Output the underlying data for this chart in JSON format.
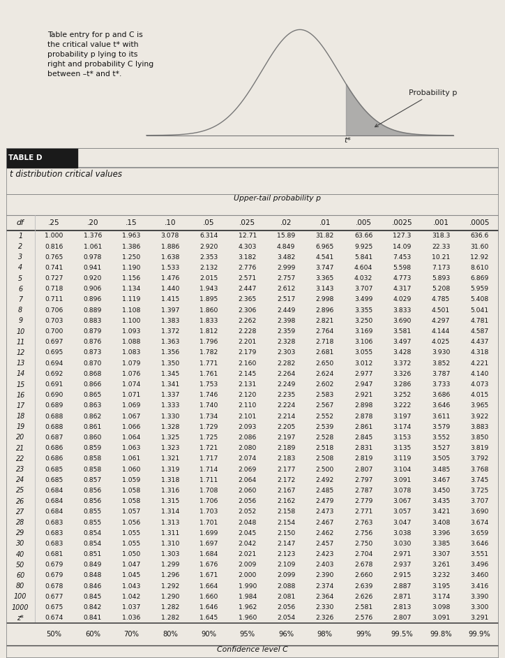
{
  "title": "TABLE D",
  "subtitle": "t distribution critical values",
  "upper_tail_label": "Upper-tail probability p",
  "col_headers": [
    ".25",
    ".20",
    ".15",
    ".10",
    ".05",
    ".025",
    ".02",
    ".01",
    ".005",
    ".0025",
    ".001",
    ".0005"
  ],
  "conf_headers": [
    "50%",
    "60%",
    "70%",
    "80%",
    "90%",
    "95%",
    "96%",
    "98%",
    "99%",
    "99.5%",
    "99.8%",
    "99.9%"
  ],
  "df_labels": [
    "1",
    "2",
    "3",
    "4",
    "5",
    "6",
    "7",
    "8",
    "9",
    "10",
    "11",
    "12",
    "13",
    "14",
    "15",
    "16",
    "17",
    "18",
    "19",
    "20",
    "21",
    "22",
    "23",
    "24",
    "25",
    "26",
    "27",
    "28",
    "29",
    "30",
    "40",
    "50",
    "60",
    "80",
    "100",
    "1000",
    "z*"
  ],
  "table_data": [
    [
      1.0,
      1.376,
      1.963,
      3.078,
      6.314,
      12.71,
      15.89,
      31.82,
      63.66,
      127.3,
      318.3,
      636.6
    ],
    [
      0.816,
      1.061,
      1.386,
      1.886,
      2.92,
      4.303,
      4.849,
      6.965,
      9.925,
      14.09,
      22.33,
      31.6
    ],
    [
      0.765,
      0.978,
      1.25,
      1.638,
      2.353,
      3.182,
      3.482,
      4.541,
      5.841,
      7.453,
      10.21,
      12.92
    ],
    [
      0.741,
      0.941,
      1.19,
      1.533,
      2.132,
      2.776,
      2.999,
      3.747,
      4.604,
      5.598,
      7.173,
      8.61
    ],
    [
      0.727,
      0.92,
      1.156,
      1.476,
      2.015,
      2.571,
      2.757,
      3.365,
      4.032,
      4.773,
      5.893,
      6.869
    ],
    [
      0.718,
      0.906,
      1.134,
      1.44,
      1.943,
      2.447,
      2.612,
      3.143,
      3.707,
      4.317,
      5.208,
      5.959
    ],
    [
      0.711,
      0.896,
      1.119,
      1.415,
      1.895,
      2.365,
      2.517,
      2.998,
      3.499,
      4.029,
      4.785,
      5.408
    ],
    [
      0.706,
      0.889,
      1.108,
      1.397,
      1.86,
      2.306,
      2.449,
      2.896,
      3.355,
      3.833,
      4.501,
      5.041
    ],
    [
      0.703,
      0.883,
      1.1,
      1.383,
      1.833,
      2.262,
      2.398,
      2.821,
      3.25,
      3.69,
      4.297,
      4.781
    ],
    [
      0.7,
      0.879,
      1.093,
      1.372,
      1.812,
      2.228,
      2.359,
      2.764,
      3.169,
      3.581,
      4.144,
      4.587
    ],
    [
      0.697,
      0.876,
      1.088,
      1.363,
      1.796,
      2.201,
      2.328,
      2.718,
      3.106,
      3.497,
      4.025,
      4.437
    ],
    [
      0.695,
      0.873,
      1.083,
      1.356,
      1.782,
      2.179,
      2.303,
      2.681,
      3.055,
      3.428,
      3.93,
      4.318
    ],
    [
      0.694,
      0.87,
      1.079,
      1.35,
      1.771,
      2.16,
      2.282,
      2.65,
      3.012,
      3.372,
      3.852,
      4.221
    ],
    [
      0.692,
      0.868,
      1.076,
      1.345,
      1.761,
      2.145,
      2.264,
      2.624,
      2.977,
      3.326,
      3.787,
      4.14
    ],
    [
      0.691,
      0.866,
      1.074,
      1.341,
      1.753,
      2.131,
      2.249,
      2.602,
      2.947,
      3.286,
      3.733,
      4.073
    ],
    [
      0.69,
      0.865,
      1.071,
      1.337,
      1.746,
      2.12,
      2.235,
      2.583,
      2.921,
      3.252,
      3.686,
      4.015
    ],
    [
      0.689,
      0.863,
      1.069,
      1.333,
      1.74,
      2.11,
      2.224,
      2.567,
      2.898,
      3.222,
      3.646,
      3.965
    ],
    [
      0.688,
      0.862,
      1.067,
      1.33,
      1.734,
      2.101,
      2.214,
      2.552,
      2.878,
      3.197,
      3.611,
      3.922
    ],
    [
      0.688,
      0.861,
      1.066,
      1.328,
      1.729,
      2.093,
      2.205,
      2.539,
      2.861,
      3.174,
      3.579,
      3.883
    ],
    [
      0.687,
      0.86,
      1.064,
      1.325,
      1.725,
      2.086,
      2.197,
      2.528,
      2.845,
      3.153,
      3.552,
      3.85
    ],
    [
      0.686,
      0.859,
      1.063,
      1.323,
      1.721,
      2.08,
      2.189,
      2.518,
      2.831,
      3.135,
      3.527,
      3.819
    ],
    [
      0.686,
      0.858,
      1.061,
      1.321,
      1.717,
      2.074,
      2.183,
      2.508,
      2.819,
      3.119,
      3.505,
      3.792
    ],
    [
      0.685,
      0.858,
      1.06,
      1.319,
      1.714,
      2.069,
      2.177,
      2.5,
      2.807,
      3.104,
      3.485,
      3.768
    ],
    [
      0.685,
      0.857,
      1.059,
      1.318,
      1.711,
      2.064,
      2.172,
      2.492,
      2.797,
      3.091,
      3.467,
      3.745
    ],
    [
      0.684,
      0.856,
      1.058,
      1.316,
      1.708,
      2.06,
      2.167,
      2.485,
      2.787,
      3.078,
      3.45,
      3.725
    ],
    [
      0.684,
      0.856,
      1.058,
      1.315,
      1.706,
      2.056,
      2.162,
      2.479,
      2.779,
      3.067,
      3.435,
      3.707
    ],
    [
      0.684,
      0.855,
      1.057,
      1.314,
      1.703,
      2.052,
      2.158,
      2.473,
      2.771,
      3.057,
      3.421,
      3.69
    ],
    [
      0.683,
      0.855,
      1.056,
      1.313,
      1.701,
      2.048,
      2.154,
      2.467,
      2.763,
      3.047,
      3.408,
      3.674
    ],
    [
      0.683,
      0.854,
      1.055,
      1.311,
      1.699,
      2.045,
      2.15,
      2.462,
      2.756,
      3.038,
      3.396,
      3.659
    ],
    [
      0.683,
      0.854,
      1.055,
      1.31,
      1.697,
      2.042,
      2.147,
      2.457,
      2.75,
      3.03,
      3.385,
      3.646
    ],
    [
      0.681,
      0.851,
      1.05,
      1.303,
      1.684,
      2.021,
      2.123,
      2.423,
      2.704,
      2.971,
      3.307,
      3.551
    ],
    [
      0.679,
      0.849,
      1.047,
      1.299,
      1.676,
      2.009,
      2.109,
      2.403,
      2.678,
      2.937,
      3.261,
      3.496
    ],
    [
      0.679,
      0.848,
      1.045,
      1.296,
      1.671,
      2.0,
      2.099,
      2.39,
      2.66,
      2.915,
      3.232,
      3.46
    ],
    [
      0.678,
      0.846,
      1.043,
      1.292,
      1.664,
      1.99,
      2.088,
      2.374,
      2.639,
      2.887,
      3.195,
      3.416
    ],
    [
      0.677,
      0.845,
      1.042,
      1.29,
      1.66,
      1.984,
      2.081,
      2.364,
      2.626,
      2.871,
      3.174,
      3.39
    ],
    [
      0.675,
      0.842,
      1.037,
      1.282,
      1.646,
      1.962,
      2.056,
      2.33,
      2.581,
      2.813,
      3.098,
      3.3
    ],
    [
      0.674,
      0.841,
      1.036,
      1.282,
      1.645,
      1.96,
      2.054,
      2.326,
      2.576,
      2.807,
      3.091,
      3.291
    ]
  ],
  "description_text": "Table entry for p and C is\nthe critical value t* with\nprobability p lying to its\nright and probability C lying\nbetween –t* and t*.",
  "prob_label": "Probability p",
  "conf_label": "Confidence level C",
  "bg_color": "#ede9e2",
  "table_bg": "#ffffff",
  "header_bg": "#1a1a1a",
  "header_text": "#ffffff",
  "border_color": "#888888",
  "text_color": "#111111"
}
